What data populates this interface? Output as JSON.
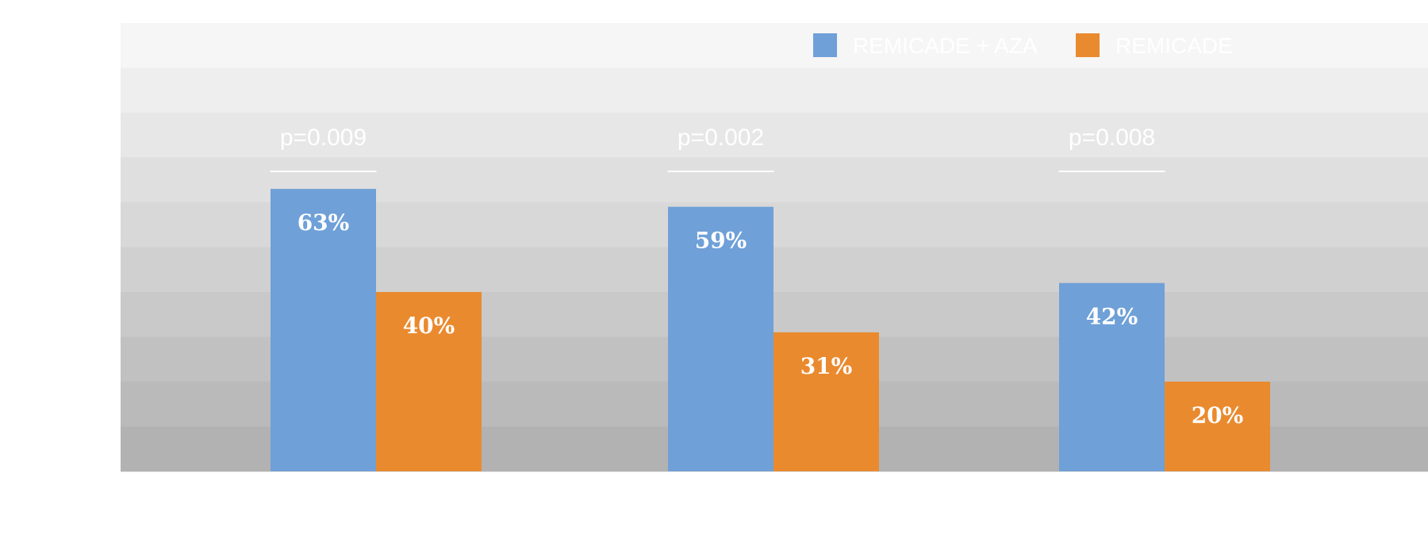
{
  "chart_data": {
    "type": "bar",
    "categories": [
      "",
      "",
      ""
    ],
    "series": [
      {
        "name": "REMICADE + AZA",
        "color": "#6FA0D8",
        "values": [
          63,
          59,
          42
        ]
      },
      {
        "name": "REMICADE",
        "color": "#EA8A2E",
        "values": [
          40,
          31,
          20
        ]
      }
    ],
    "data_labels": [
      [
        "63%",
        "59%",
        "42%"
      ],
      [
        "40%",
        "31%",
        "20%"
      ]
    ],
    "annotations": [
      "p=0.009",
      "p=0.002",
      "p=0.008"
    ],
    "ylim": [
      0,
      100
    ],
    "grid": "banded",
    "legend": "top-right",
    "title": "",
    "xlabel": "",
    "ylabel": ""
  }
}
